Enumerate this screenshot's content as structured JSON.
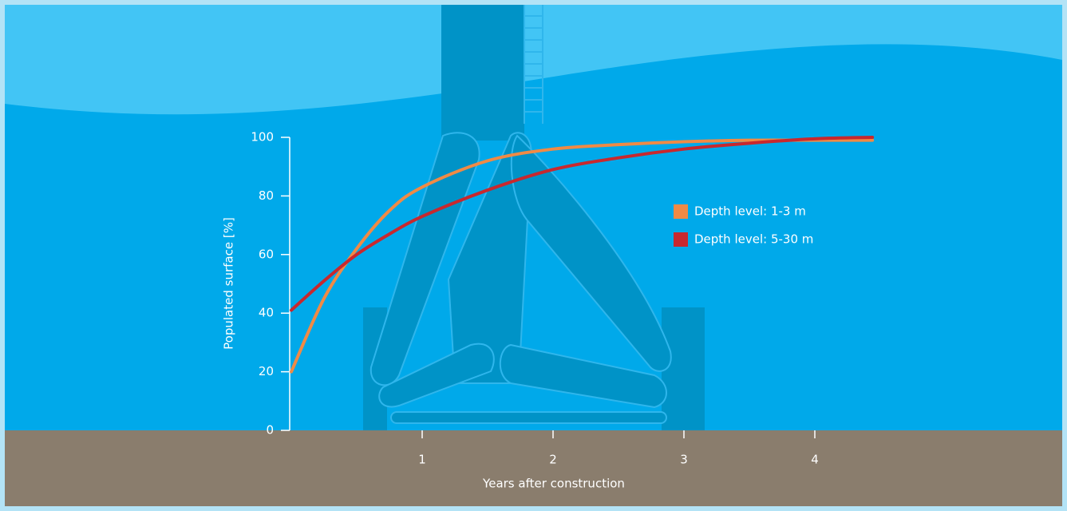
{
  "chart_data": {
    "type": "line",
    "x_label": "Years after construction",
    "y_label": "Populated surface [%]",
    "x": [
      0,
      0.25,
      0.5,
      0.75,
      1,
      1.5,
      2,
      2.5,
      3,
      3.5,
      4,
      4.44
    ],
    "series": [
      {
        "name": "Depth level: 1-3 m",
        "color": "#f08a45",
        "values": [
          20,
          45,
          62,
          75,
          83,
          92,
          96,
          97.5,
          98.5,
          99,
          99,
          99
        ]
      },
      {
        "name": "Depth level: 5-30 m",
        "color": "#c8282e",
        "values": [
          41,
          51,
          60,
          67,
          73,
          82,
          89,
          93,
          96,
          98,
          99.5,
          100
        ]
      }
    ],
    "xlim": [
      0,
      4.5
    ],
    "xticks": [
      1,
      2,
      3,
      4
    ],
    "ylim": [
      0,
      100
    ],
    "yticks": [
      0,
      20,
      40,
      60,
      80,
      100
    ]
  }
}
